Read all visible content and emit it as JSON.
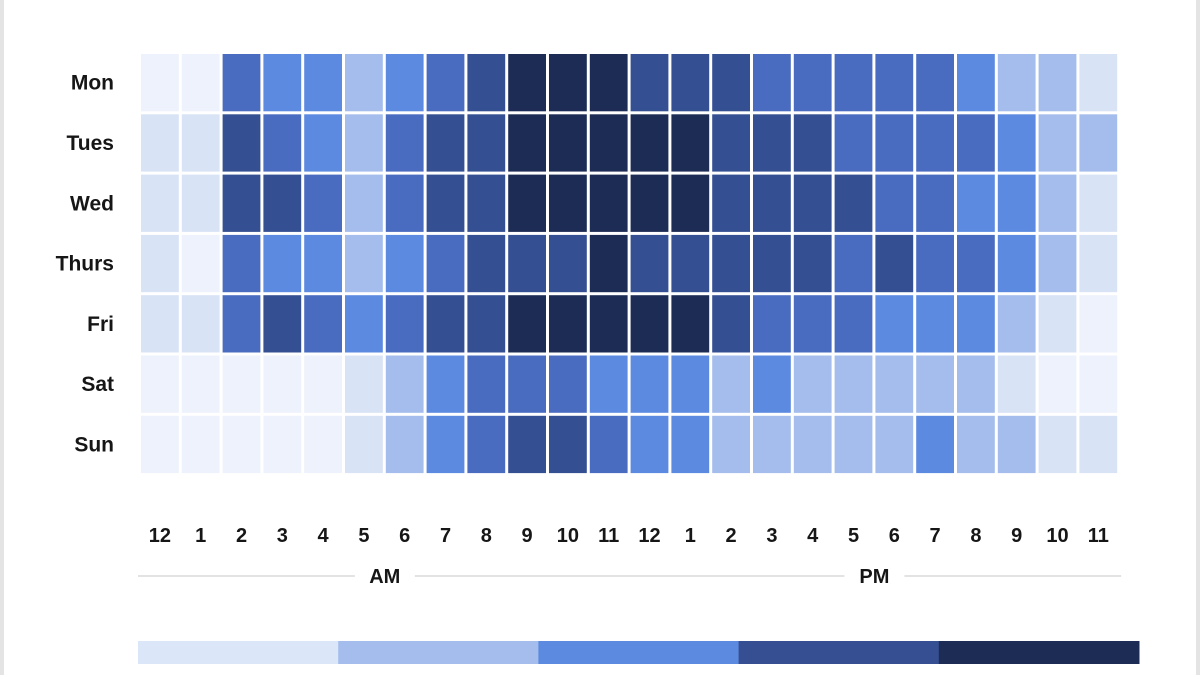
{
  "chart_data": {
    "type": "heatmap",
    "rows": [
      "Mon",
      "Tues",
      "Wed",
      "Thurs",
      "Fri",
      "Sat",
      "Sun"
    ],
    "columns": [
      "12",
      "1",
      "2",
      "3",
      "4",
      "5",
      "6",
      "7",
      "8",
      "9",
      "10",
      "11",
      "12",
      "1",
      "2",
      "3",
      "4",
      "5",
      "6",
      "7",
      "8",
      "9",
      "10",
      "11"
    ],
    "periods": [
      {
        "label": "AM",
        "from_col": 0,
        "to_col": 11
      },
      {
        "label": "PM",
        "from_col": 12,
        "to_col": 23
      }
    ],
    "level_colors": [
      "#eef2fc",
      "#d9e3f6",
      "#a5bdec",
      "#5b8ae0",
      "#4a6cc0",
      "#344f92",
      "#1d2c54"
    ],
    "legend_colors": [
      "#dbe7f8",
      "#a5bdec",
      "#5b8ae0",
      "#354f92",
      "#1d2c54"
    ],
    "values": [
      [
        0,
        0,
        4,
        3,
        3,
        2,
        3,
        4,
        5,
        6,
        6,
        6,
        5,
        5,
        5,
        4,
        4,
        4,
        4,
        4,
        3,
        2,
        2,
        1
      ],
      [
        1,
        1,
        5,
        4,
        3,
        2,
        4,
        5,
        5,
        6,
        6,
        6,
        6,
        6,
        5,
        5,
        5,
        4,
        4,
        4,
        4,
        3,
        2,
        2
      ],
      [
        1,
        1,
        5,
        5,
        4,
        2,
        4,
        5,
        5,
        6,
        6,
        6,
        6,
        6,
        5,
        5,
        5,
        5,
        4,
        4,
        3,
        3,
        2,
        1
      ],
      [
        1,
        0,
        4,
        3,
        3,
        2,
        3,
        4,
        5,
        5,
        5,
        6,
        5,
        5,
        5,
        5,
        5,
        4,
        5,
        4,
        4,
        3,
        2,
        1
      ],
      [
        1,
        1,
        4,
        5,
        4,
        3,
        4,
        5,
        5,
        6,
        6,
        6,
        6,
        6,
        5,
        4,
        4,
        4,
        3,
        3,
        3,
        2,
        1,
        0
      ],
      [
        0,
        0,
        0,
        0,
        0,
        1,
        2,
        3,
        4,
        4,
        4,
        3,
        3,
        3,
        2,
        3,
        2,
        2,
        2,
        2,
        2,
        1,
        0,
        0
      ],
      [
        0,
        0,
        0,
        0,
        0,
        1,
        2,
        3,
        4,
        5,
        5,
        4,
        3,
        3,
        2,
        2,
        2,
        2,
        2,
        3,
        2,
        2,
        1,
        1
      ]
    ]
  }
}
